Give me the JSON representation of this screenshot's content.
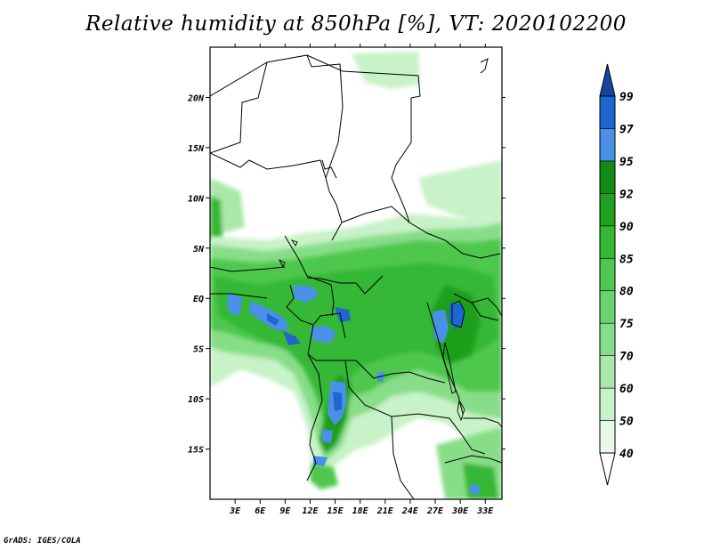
{
  "title": "Relative humidity at 850hPa [%], VT: 2020102200",
  "credit": "GrADS: IGES/COLA",
  "map": {
    "lon_range": [
      0,
      35
    ],
    "lat_range": [
      -20,
      25
    ],
    "x_ticks": [
      "3E",
      "6E",
      "9E",
      "12E",
      "15E",
      "18E",
      "21E",
      "24E",
      "27E",
      "30E",
      "33E"
    ],
    "y_ticks": [
      "20N",
      "15N",
      "10N",
      "5N",
      "EQ",
      "5S",
      "10S",
      "15S"
    ]
  },
  "colorbar": {
    "levels": [
      "40",
      "50",
      "60",
      "70",
      "75",
      "80",
      "85",
      "90",
      "92",
      "95",
      "97",
      "99"
    ],
    "colors": [
      "#ffffff",
      "#e6fae6",
      "#c8f2c8",
      "#a8e8a8",
      "#88de88",
      "#6ad46a",
      "#4ec84e",
      "#34b834",
      "#1fa01f",
      "#128c12",
      "#4a90e8",
      "#1f66d0",
      "#1446a0"
    ]
  }
}
